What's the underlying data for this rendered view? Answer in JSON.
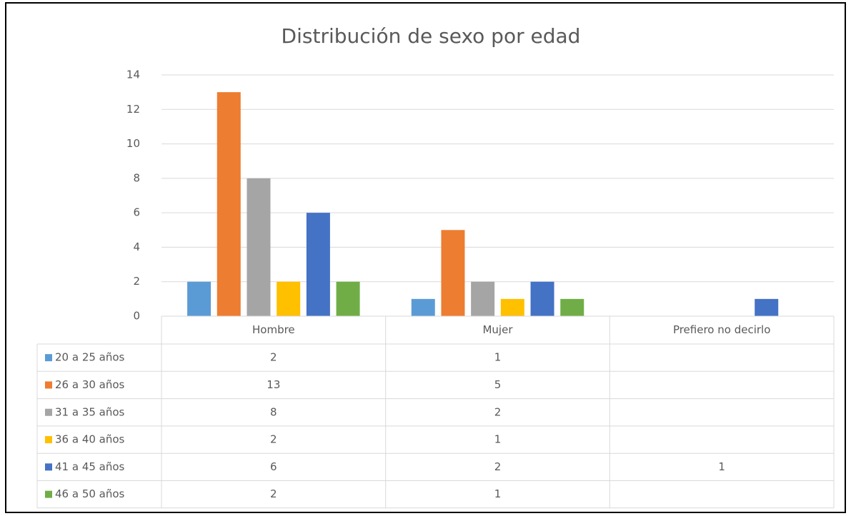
{
  "chart_data": {
    "type": "bar",
    "title": "Distribución de sexo por edad",
    "categories": [
      "Hombre",
      "Mujer",
      "Prefiero no decirlo"
    ],
    "series": [
      {
        "name": "20 a 25 años",
        "color": "#5b9bd5",
        "values": [
          2,
          1,
          null
        ]
      },
      {
        "name": "26 a 30 años",
        "color": "#ed7d31",
        "values": [
          13,
          5,
          null
        ]
      },
      {
        "name": "31 a 35 años",
        "color": "#a5a5a5",
        "values": [
          8,
          2,
          null
        ]
      },
      {
        "name": "36 a 40 años",
        "color": "#ffc000",
        "values": [
          2,
          1,
          null
        ]
      },
      {
        "name": "41 a 45 años",
        "color": "#4472c4",
        "values": [
          6,
          2,
          1
        ]
      },
      {
        "name": "46 a 50 años",
        "color": "#70ad47",
        "values": [
          2,
          1,
          null
        ]
      }
    ],
    "ylim": [
      0,
      14
    ],
    "yticks": [
      0,
      2,
      4,
      6,
      8,
      10,
      12,
      14
    ],
    "grid": true,
    "data_table": true
  }
}
